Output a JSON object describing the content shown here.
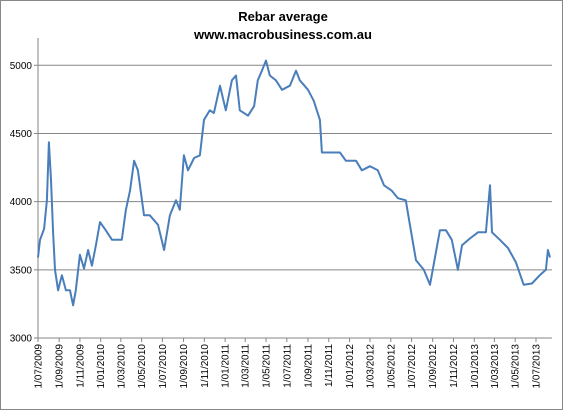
{
  "chart_data": {
    "type": "line",
    "title": "Rebar average",
    "subtitle": "www.macrobusiness.com.au",
    "x": [
      "2009-07-01",
      "2009-07-07",
      "2009-07-19",
      "2009-07-27",
      "2009-08-02",
      "2009-08-08",
      "2009-08-14",
      "2009-08-20",
      "2009-08-29",
      "2009-09-09",
      "2009-09-21",
      "2009-10-03",
      "2009-10-12",
      "2009-10-20",
      "2009-11-01",
      "2009-11-13",
      "2009-11-25",
      "2009-12-06",
      "2009-12-18",
      "2009-12-30",
      "2010-01-16",
      "2010-02-03",
      "2010-03-04",
      "2010-03-16",
      "2010-03-28",
      "2010-04-09",
      "2010-04-20",
      "2010-05-08",
      "2010-05-25",
      "2010-06-18",
      "2010-07-06",
      "2010-07-23",
      "2010-08-10",
      "2010-08-21",
      "2010-09-02",
      "2010-09-14",
      "2010-10-02",
      "2010-10-19",
      "2010-10-31",
      "2010-11-17",
      "2010-11-29",
      "2010-12-17",
      "2011-01-03",
      "2011-01-21",
      "2011-02-02",
      "2011-02-13",
      "2011-03-09",
      "2011-03-27",
      "2011-04-07",
      "2011-04-19",
      "2011-05-01",
      "2011-05-12",
      "2011-05-30",
      "2011-06-17",
      "2011-07-10",
      "2011-07-28",
      "2011-08-08",
      "2011-09-01",
      "2011-09-18",
      "2011-10-06",
      "2011-10-12",
      "2011-11-04",
      "2011-12-04",
      "2011-12-21",
      "2012-01-20",
      "2012-02-06",
      "2012-03-01",
      "2012-03-24",
      "2012-04-11",
      "2012-05-04",
      "2012-05-22",
      "2012-06-14",
      "2012-06-26",
      "2012-07-14",
      "2012-08-06",
      "2012-08-24",
      "2012-09-05",
      "2012-09-22",
      "2012-10-10",
      "2012-10-27",
      "2012-11-14",
      "2012-11-26",
      "2012-12-19",
      "2013-01-12",
      "2013-02-04",
      "2013-02-16",
      "2013-02-22",
      "2013-03-17",
      "2013-04-10",
      "2013-05-03",
      "2013-05-26",
      "2013-06-19",
      "2013-07-12",
      "2013-07-30",
      "2013-08-05",
      "2013-08-11"
    ],
    "series": [
      {
        "name": "Rebar average",
        "color": "#4a7ebb",
        "values": [
          3590,
          3720,
          3800,
          4010,
          4435,
          4160,
          3790,
          3500,
          3350,
          3460,
          3350,
          3350,
          3240,
          3350,
          3610,
          3510,
          3645,
          3530,
          3680,
          3850,
          3790,
          3720,
          3720,
          3940,
          4080,
          4300,
          4230,
          3900,
          3900,
          3830,
          3645,
          3900,
          4010,
          3940,
          4340,
          4230,
          4320,
          4340,
          4600,
          4670,
          4650,
          4850,
          4670,
          4890,
          4925,
          4670,
          4630,
          4700,
          4890,
          4960,
          5035,
          4925,
          4890,
          4820,
          4850,
          4960,
          4890,
          4820,
          4740,
          4600,
          4360,
          4360,
          4360,
          4300,
          4300,
          4230,
          4260,
          4230,
          4120,
          4080,
          4025,
          4010,
          3830,
          3570,
          3500,
          3390,
          3555,
          3790,
          3790,
          3720,
          3500,
          3680,
          3730,
          3775,
          3775,
          4120,
          3775,
          3720,
          3660,
          3555,
          3390,
          3400,
          3460,
          3500,
          3645,
          3590
        ]
      }
    ],
    "xlim": [
      "2009-07-01",
      "2013-08-17"
    ],
    "xticks": [
      {
        "value": "2009-07-01",
        "label": "1/07/2009"
      },
      {
        "value": "2009-09-01",
        "label": "1/09/2009"
      },
      {
        "value": "2009-11-01",
        "label": "1/11/2009"
      },
      {
        "value": "2010-01-01",
        "label": "1/01/2010"
      },
      {
        "value": "2010-03-01",
        "label": "1/03/2010"
      },
      {
        "value": "2010-05-01",
        "label": "1/05/2010"
      },
      {
        "value": "2010-07-01",
        "label": "1/07/2010"
      },
      {
        "value": "2010-09-01",
        "label": "1/09/2010"
      },
      {
        "value": "2010-11-01",
        "label": "1/11/2010"
      },
      {
        "value": "2011-01-01",
        "label": "1/01/2011"
      },
      {
        "value": "2011-03-01",
        "label": "1/03/2011"
      },
      {
        "value": "2011-05-01",
        "label": "1/05/2011"
      },
      {
        "value": "2011-07-01",
        "label": "1/07/2011"
      },
      {
        "value": "2011-09-01",
        "label": "1/09/2011"
      },
      {
        "value": "2011-11-01",
        "label": "1/11/2011"
      },
      {
        "value": "2012-01-01",
        "label": "1/01/2012"
      },
      {
        "value": "2012-03-01",
        "label": "1/03/2012"
      },
      {
        "value": "2012-05-01",
        "label": "1/05/2012"
      },
      {
        "value": "2012-07-01",
        "label": "1/07/2012"
      },
      {
        "value": "2012-09-01",
        "label": "1/09/2012"
      },
      {
        "value": "2012-11-01",
        "label": "1/11/2012"
      },
      {
        "value": "2013-01-01",
        "label": "1/01/2013"
      },
      {
        "value": "2013-03-01",
        "label": "1/03/2013"
      },
      {
        "value": "2013-05-01",
        "label": "1/05/2013"
      },
      {
        "value": "2013-07-01",
        "label": "1/07/2013"
      }
    ],
    "ylim": [
      3000,
      5200
    ],
    "yticks": [
      3000,
      3500,
      4000,
      4500,
      5000
    ],
    "grid": true
  }
}
